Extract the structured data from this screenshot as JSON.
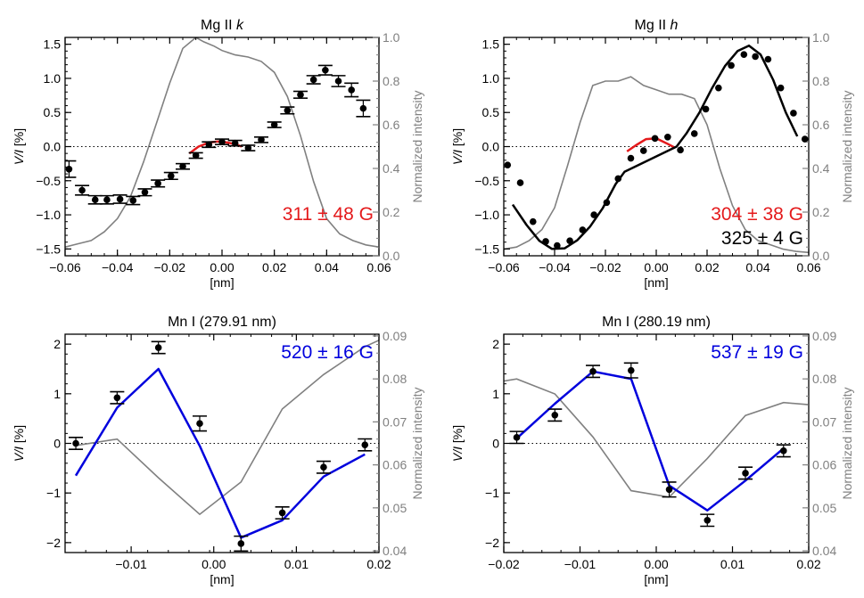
{
  "colors": {
    "data": "#000000",
    "intensity": "#808080",
    "red": "#e41a1c",
    "blue": "#0000dd",
    "black": "#000000"
  },
  "chart_data": [
    {
      "type": "scatter",
      "title_parts": [
        {
          "text": "Mg II ",
          "italic": false
        },
        {
          "text": "k",
          "italic": true
        }
      ],
      "xlabel": "[nm]",
      "ylabel": "V/I [%]",
      "y2label": "Normalized intensity",
      "xlim": [
        -0.06,
        0.06
      ],
      "ylim": [
        -1.6,
        1.6
      ],
      "y2lim": [
        0.0,
        1.0
      ],
      "xticks": [
        -0.06,
        -0.04,
        -0.02,
        0.0,
        0.02,
        0.04,
        0.06
      ],
      "xticklabels": [
        "−0.06",
        "−0.04",
        "−0.02",
        "0.00",
        "0.02",
        "0.04",
        "0.06"
      ],
      "yticks": [
        -1.5,
        -1.0,
        -0.5,
        0.0,
        0.5,
        1.0,
        1.5
      ],
      "yticklabels": [
        "−1.5",
        "−1.0",
        "−0.5",
        "0.0",
        "0.5",
        "1.0",
        "1.5"
      ],
      "y2ticks": [
        0.0,
        0.2,
        0.4,
        0.6,
        0.8,
        1.0
      ],
      "y2ticklabels": [
        "0.0",
        "0.2",
        "0.4",
        "0.6",
        "0.8",
        "1.0"
      ],
      "points": {
        "x": [
          -0.0585,
          -0.0535,
          -0.0485,
          -0.044,
          -0.039,
          -0.034,
          -0.0295,
          -0.0245,
          -0.0195,
          -0.015,
          -0.01,
          -0.005,
          0.0,
          0.005,
          0.01,
          0.015,
          0.02,
          0.025,
          0.03,
          0.035,
          0.0395,
          0.0445,
          0.0495,
          0.054
        ],
        "y": [
          -0.33,
          -0.64,
          -0.78,
          -0.78,
          -0.77,
          -0.79,
          -0.67,
          -0.54,
          -0.43,
          -0.29,
          -0.13,
          0.03,
          0.07,
          0.05,
          -0.02,
          0.1,
          0.32,
          0.53,
          0.76,
          0.98,
          1.12,
          0.96,
          0.83,
          0.56
        ],
        "err": [
          0.12,
          0.07,
          0.06,
          0.06,
          0.06,
          0.06,
          0.05,
          0.05,
          0.05,
          0.04,
          0.04,
          0.04,
          0.04,
          0.04,
          0.04,
          0.04,
          0.04,
          0.05,
          0.05,
          0.06,
          0.07,
          0.08,
          0.1,
          0.12
        ]
      },
      "intensity": {
        "x": [
          -0.06,
          -0.055,
          -0.05,
          -0.045,
          -0.04,
          -0.035,
          -0.03,
          -0.025,
          -0.02,
          -0.015,
          -0.01,
          -0.007,
          -0.003,
          0.0,
          0.005,
          0.01,
          0.015,
          0.02,
          0.025,
          0.03,
          0.035,
          0.04,
          0.045,
          0.05,
          0.055,
          0.06
        ],
        "y": [
          0.04,
          0.055,
          0.07,
          0.11,
          0.17,
          0.27,
          0.43,
          0.61,
          0.79,
          0.95,
          1.0,
          0.98,
          0.96,
          0.94,
          0.92,
          0.91,
          0.89,
          0.84,
          0.73,
          0.55,
          0.34,
          0.17,
          0.1,
          0.07,
          0.05,
          0.04
        ]
      },
      "fits": [
        {
          "color": "red",
          "x": [
            -0.0125,
            -0.009,
            -0.005,
            -0.0015,
            0.002,
            0.0055,
            0.0075
          ],
          "y": [
            -0.1,
            0.0,
            0.06,
            0.075,
            0.06,
            0.03,
            0.0
          ]
        }
      ],
      "annotations": [
        {
          "text": "311 ± 48 G",
          "color": "red",
          "row": 0
        }
      ]
    },
    {
      "type": "scatter",
      "title_parts": [
        {
          "text": "Mg II ",
          "italic": false
        },
        {
          "text": "h",
          "italic": true
        }
      ],
      "xlabel": "[nm]",
      "ylabel": "V/I [%]",
      "y2label": "Normalized intensity",
      "xlim": [
        -0.06,
        0.06
      ],
      "ylim": [
        -1.6,
        1.6
      ],
      "y2lim": [
        0.0,
        1.0
      ],
      "xticks": [
        -0.06,
        -0.04,
        -0.02,
        0.0,
        0.02,
        0.04,
        0.06
      ],
      "xticklabels": [
        "−0.06",
        "−0.04",
        "−0.02",
        "0.00",
        "0.02",
        "0.04",
        "0.06"
      ],
      "yticks": [
        -1.5,
        -1.0,
        -0.5,
        0.0,
        0.5,
        1.0,
        1.5
      ],
      "yticklabels": [
        "−1.5",
        "−1.0",
        "−0.5",
        "0.0",
        "0.5",
        "1.0",
        "1.5"
      ],
      "y2ticks": [
        0.0,
        0.2,
        0.4,
        0.6,
        0.8,
        1.0
      ],
      "y2ticklabels": [
        "0.0",
        "0.2",
        "0.4",
        "0.6",
        "0.8",
        "1.0"
      ],
      "points": {
        "x": [
          -0.0585,
          -0.0535,
          -0.0485,
          -0.0435,
          -0.039,
          -0.034,
          -0.029,
          -0.0245,
          -0.0195,
          -0.015,
          -0.01,
          -0.005,
          -0.0005,
          0.0045,
          0.0095,
          0.015,
          0.0195,
          0.0245,
          0.0295,
          0.0345,
          0.039,
          0.044,
          0.049,
          0.054,
          0.0585
        ],
        "y": [
          -0.27,
          -0.53,
          -1.1,
          -1.39,
          -1.45,
          -1.38,
          -1.22,
          -1.0,
          -0.82,
          -0.47,
          -0.17,
          -0.06,
          0.12,
          0.14,
          -0.05,
          0.19,
          0.55,
          0.86,
          1.19,
          1.35,
          1.32,
          1.28,
          0.86,
          0.49,
          0.11
        ]
      },
      "intensity": {
        "x": [
          -0.06,
          -0.055,
          -0.05,
          -0.045,
          -0.04,
          -0.035,
          -0.03,
          -0.025,
          -0.02,
          -0.015,
          -0.01,
          -0.005,
          0.0,
          0.005,
          0.01,
          0.015,
          0.02,
          0.025,
          0.03,
          0.035,
          0.04,
          0.045,
          0.05,
          0.055,
          0.06
        ],
        "y": [
          0.03,
          0.04,
          0.07,
          0.12,
          0.22,
          0.41,
          0.61,
          0.78,
          0.8,
          0.8,
          0.82,
          0.78,
          0.76,
          0.74,
          0.74,
          0.72,
          0.6,
          0.4,
          0.23,
          0.12,
          0.07,
          0.05,
          0.03,
          0.02,
          0.015
        ]
      },
      "fits": [
        {
          "color": "red",
          "x": [
            -0.0115,
            -0.008,
            -0.004,
            0.0,
            0.004,
            0.0075
          ],
          "y": [
            -0.07,
            0.02,
            0.11,
            0.12,
            0.05,
            -0.02
          ]
        },
        {
          "color": "black",
          "x": [
            -0.0565,
            -0.051,
            -0.046,
            -0.041,
            -0.036,
            -0.031,
            -0.026,
            -0.021,
            -0.016,
            -0.0125,
            0.008,
            0.012,
            0.017,
            0.022,
            0.027,
            0.032,
            0.0365,
            0.041,
            0.046,
            0.051,
            0.0555
          ],
          "y": [
            -0.85,
            -1.15,
            -1.38,
            -1.5,
            -1.49,
            -1.37,
            -1.17,
            -0.9,
            -0.55,
            -0.37,
            0.0,
            0.2,
            0.5,
            0.86,
            1.18,
            1.4,
            1.48,
            1.35,
            0.98,
            0.5,
            0.15
          ]
        }
      ],
      "annotations": [
        {
          "text": "304 ± 38 G",
          "color": "red",
          "row": 0
        },
        {
          "text": "325 ±  4 G",
          "color": "black",
          "row": 1
        }
      ]
    },
    {
      "type": "scatter",
      "title_parts": [
        {
          "text": "Mn I (279.91 nm)",
          "italic": false
        }
      ],
      "xlabel": "[nm]",
      "ylabel": "V/I [%]",
      "y2label": "Normalized intensity",
      "xlim": [
        -0.018,
        0.02
      ],
      "ylim": [
        -2.2,
        2.2
      ],
      "y2lim": [
        0.0396,
        0.0904
      ],
      "xticks": [
        -0.01,
        0.0,
        0.01,
        0.02
      ],
      "xticklabels": [
        "−0.01",
        "0.00",
        "0.01",
        "0.02"
      ],
      "yticks": [
        -2,
        -1,
        0,
        1,
        2
      ],
      "yticklabels": [
        "−2",
        "−1",
        "0",
        "1",
        "2"
      ],
      "y2ticks": [
        0.04,
        0.05,
        0.06,
        0.07,
        0.08,
        0.09
      ],
      "y2ticklabels": [
        "0.04",
        "0.05",
        "0.06",
        "0.07",
        "0.08",
        "0.09"
      ],
      "points": {
        "x": [
          -0.0167,
          -0.0117,
          -0.0067,
          -0.0017,
          0.0033,
          0.0083,
          0.0133,
          0.0183
        ],
        "y": [
          0.0,
          0.92,
          1.93,
          0.4,
          -2.02,
          -1.4,
          -0.48,
          -0.03
        ],
        "err": [
          0.12,
          0.12,
          0.12,
          0.15,
          0.15,
          0.12,
          0.12,
          0.12
        ]
      },
      "intensity": {
        "x": [
          -0.0167,
          -0.0117,
          -0.0067,
          -0.0017,
          0.0033,
          0.0083,
          0.0133,
          0.0183,
          0.02
        ],
        "y": [
          0.0645,
          0.066,
          0.057,
          0.0485,
          0.056,
          0.073,
          0.081,
          0.0875,
          0.089
        ]
      },
      "fits": [
        {
          "color": "blue",
          "x": [
            -0.0167,
            -0.0117,
            -0.0067,
            -0.0017,
            0.0033,
            0.0083,
            0.0133,
            0.0183
          ],
          "y": [
            -0.65,
            0.72,
            1.5,
            -0.05,
            -1.9,
            -1.55,
            -0.67,
            -0.22
          ]
        }
      ],
      "annotations": [
        {
          "text": "520 ± 16 G",
          "color": "blue",
          "row": 0
        }
      ]
    },
    {
      "type": "scatter",
      "title_parts": [
        {
          "text": "Mn I (280.19 nm)",
          "italic": false
        }
      ],
      "xlabel": "[nm]",
      "ylabel": "V/I [%]",
      "y2label": "Normalized intensity",
      "xlim": [
        -0.02,
        0.02
      ],
      "ylim": [
        -2.2,
        2.2
      ],
      "y2lim": [
        0.0396,
        0.0904
      ],
      "xticks": [
        -0.02,
        -0.01,
        0.0,
        0.01,
        0.02
      ],
      "xticklabels": [
        "−0.02",
        "−0.01",
        "0.00",
        "0.01",
        "0.02"
      ],
      "yticks": [
        -2,
        -1,
        0,
        1,
        2
      ],
      "yticklabels": [
        "−2",
        "−1",
        "0",
        "1",
        "2"
      ],
      "y2ticks": [
        0.04,
        0.05,
        0.06,
        0.07,
        0.08,
        0.09
      ],
      "y2ticklabels": [
        "0.04",
        "0.05",
        "0.06",
        "0.07",
        "0.08",
        "0.09"
      ],
      "points": {
        "x": [
          -0.0183,
          -0.0133,
          -0.0083,
          -0.0033,
          0.0017,
          0.0067,
          0.0117,
          0.0167
        ],
        "y": [
          0.12,
          0.57,
          1.45,
          1.47,
          -0.93,
          -1.55,
          -0.6,
          -0.15
        ],
        "err": [
          0.12,
          0.12,
          0.12,
          0.15,
          0.15,
          0.12,
          0.12,
          0.12
        ]
      },
      "intensity": {
        "x": [
          -0.02,
          -0.0183,
          -0.0133,
          -0.0083,
          -0.0033,
          0.0017,
          0.0067,
          0.0117,
          0.0167,
          0.02
        ],
        "y": [
          0.0795,
          0.08,
          0.0765,
          0.0665,
          0.054,
          0.0525,
          0.0615,
          0.0715,
          0.0745,
          0.074
        ]
      },
      "fits": [
        {
          "color": "blue",
          "x": [
            -0.0183,
            -0.0133,
            -0.0083,
            -0.0033,
            0.0017,
            0.0067,
            0.0117,
            0.0167
          ],
          "y": [
            0.1,
            0.8,
            1.45,
            1.3,
            -0.85,
            -1.35,
            -0.75,
            -0.1
          ]
        }
      ],
      "annotations": [
        {
          "text": "537 ± 19 G",
          "color": "blue",
          "row": 0
        }
      ]
    }
  ]
}
